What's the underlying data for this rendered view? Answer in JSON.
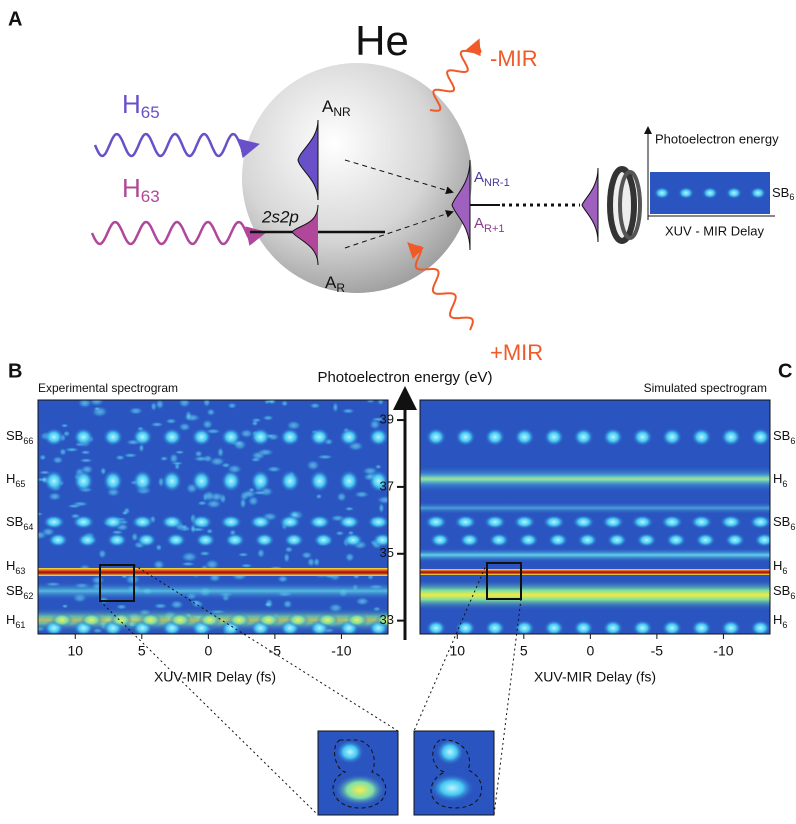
{
  "panel_a": {
    "letter": "A",
    "atom": "He",
    "h65": {
      "base": "H",
      "sub": "65"
    },
    "h63": {
      "base": "H",
      "sub": "63"
    },
    "minus_mir": "-MIR",
    "plus_mir": "+MIR",
    "state": "2s2p",
    "a_nr": {
      "base": "A",
      "sub": "NR"
    },
    "a_r": {
      "base": "A",
      "sub": "R"
    },
    "a_nr1": {
      "base": "A",
      "sub": "NR-1"
    },
    "a_r1": {
      "base": "A",
      "sub": "R+1"
    },
    "detector_energy": "Photoelectron energy",
    "detector_sb": {
      "base": "SB",
      "sub": "6"
    },
    "detector_delay": "XUV - MIR Delay"
  },
  "panel_b": {
    "letter": "B",
    "title": "Experimental spectrogram",
    "rows": [
      {
        "base": "SB",
        "sub": "66"
      },
      {
        "base": "H",
        "sub": "65"
      },
      {
        "base": "SB",
        "sub": "64"
      },
      {
        "base": "H",
        "sub": "63"
      },
      {
        "base": "SB",
        "sub": "62"
      },
      {
        "base": "H",
        "sub": "61"
      }
    ],
    "xlabel": "XUV-MIR Delay (fs)"
  },
  "panel_c": {
    "letter": "C",
    "title": "Simulated spectrogram",
    "rows": [
      {
        "base": "SB",
        "sub": "6"
      },
      {
        "base": "H",
        "sub": "6"
      },
      {
        "base": "SB",
        "sub": "6"
      },
      {
        "base": "H",
        "sub": "6"
      },
      {
        "base": "SB",
        "sub": "6"
      },
      {
        "base": "H",
        "sub": "6"
      }
    ],
    "xlabel": "XUV-MIR Delay (fs)"
  },
  "energy_axis": {
    "label": "Photoelectron energy (eV)",
    "ylim": [
      32.6,
      39.6
    ],
    "yticks": [
      33,
      35,
      37,
      39
    ]
  },
  "delay_axis": {
    "xlim": [
      12.8,
      -13.5
    ],
    "xticks": [
      10,
      5,
      0,
      -5,
      -10
    ]
  }
}
